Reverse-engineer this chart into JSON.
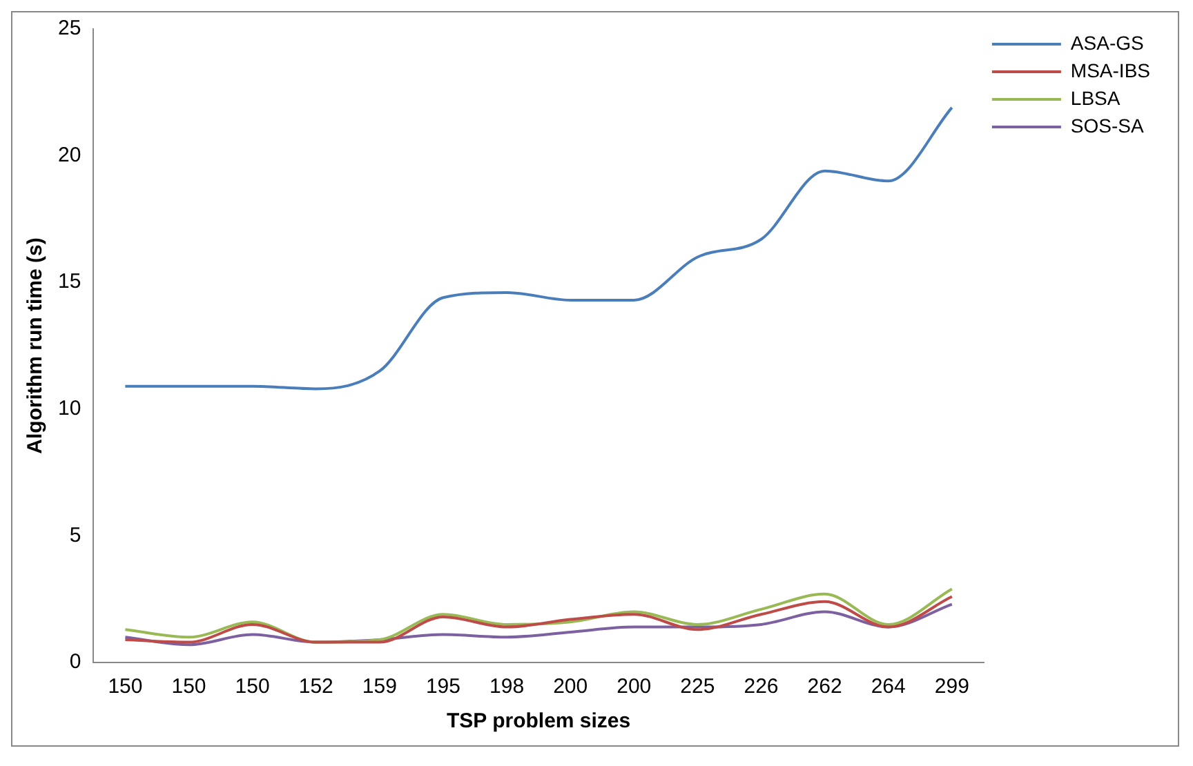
{
  "chart_data": {
    "type": "line",
    "xlabel": "TSP problem sizes",
    "ylabel": "Algorithm run time (s)",
    "categories": [
      "150",
      "150",
      "150",
      "152",
      "159",
      "195",
      "198",
      "200",
      "200",
      "225",
      "226",
      "262",
      "264",
      "299"
    ],
    "series": [
      {
        "name": "ASA-GS",
        "color": "#4a7ebb",
        "values": [
          10.9,
          10.9,
          10.9,
          10.8,
          11.5,
          14.4,
          14.6,
          14.3,
          14.3,
          16.0,
          16.7,
          19.4,
          19.0,
          21.9
        ]
      },
      {
        "name": "MSA-IBS",
        "color": "#be4b48",
        "values": [
          0.9,
          0.8,
          1.5,
          0.8,
          0.8,
          1.8,
          1.4,
          1.7,
          1.9,
          1.3,
          1.9,
          2.4,
          1.4,
          2.6
        ]
      },
      {
        "name": "LBSA",
        "color": "#98b954",
        "values": [
          1.3,
          1.0,
          1.6,
          0.8,
          0.9,
          1.9,
          1.5,
          1.6,
          2.0,
          1.5,
          2.1,
          2.7,
          1.5,
          2.9
        ]
      },
      {
        "name": "SOS-SA",
        "color": "#7d60a0",
        "values": [
          1.0,
          0.7,
          1.1,
          0.8,
          0.9,
          1.1,
          1.0,
          1.2,
          1.4,
          1.4,
          1.5,
          2.0,
          1.4,
          2.3
        ]
      }
    ],
    "ylim": [
      0,
      25
    ],
    "yticks": [
      0,
      5,
      10,
      15,
      20,
      25
    ],
    "grid": false,
    "legend": "top right",
    "marker": "none",
    "line_style": "solid"
  }
}
